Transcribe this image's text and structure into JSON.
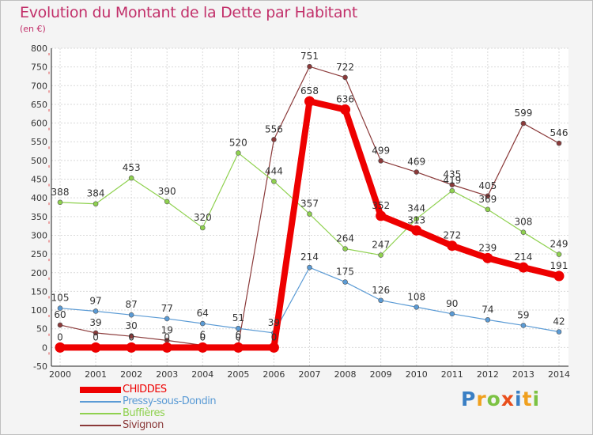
{
  "chart_data": {
    "type": "line",
    "title": "Evolution du Montant de la Dette par Habitant",
    "subtitle": "(en €)",
    "categories": [
      "2000",
      "2001",
      "2002",
      "2003",
      "2004",
      "2005",
      "2006",
      "2007",
      "2008",
      "2009",
      "2010",
      "2011",
      "2012",
      "2013",
      "2014"
    ],
    "ylim": [
      -50,
      800
    ],
    "yticks": [
      -50,
      0,
      50,
      100,
      150,
      200,
      250,
      300,
      350,
      400,
      450,
      500,
      550,
      600,
      650,
      700,
      750,
      800
    ],
    "grid": true,
    "legend_position": "bottom-left",
    "series": [
      {
        "name": "CHIDDES",
        "color": "#ee0000",
        "width": 8,
        "values": [
          0,
          0,
          0,
          0,
          0,
          0,
          0,
          658,
          636,
          352,
          313,
          272,
          239,
          214,
          191
        ]
      },
      {
        "name": "Pressy-sous-Dondin",
        "color": "#5b9bd5",
        "width": 1.2,
        "values": [
          105,
          97,
          87,
          77,
          64,
          51,
          39,
          214,
          175,
          126,
          108,
          90,
          74,
          59,
          42
        ]
      },
      {
        "name": "Buffières",
        "color": "#8fd14f",
        "width": 1.2,
        "values": [
          388,
          384,
          453,
          390,
          320,
          520,
          444,
          357,
          264,
          247,
          344,
          419,
          369,
          308,
          249
        ]
      },
      {
        "name": "Sivignon",
        "color": "#8b3a3a",
        "width": 1.2,
        "values": [
          60,
          39,
          30,
          19,
          6,
          6,
          556,
          751,
          722,
          499,
          469,
          435,
          405,
          599,
          546
        ]
      }
    ]
  },
  "brand": {
    "letters": [
      "P",
      "r",
      "o",
      "x",
      "i",
      "t",
      "i"
    ],
    "colors": [
      "#3a7fc4",
      "#f0a01e",
      "#7cc243",
      "#e94e1b",
      "#3a7fc4",
      "#f0a01e",
      "#7cc243"
    ]
  }
}
